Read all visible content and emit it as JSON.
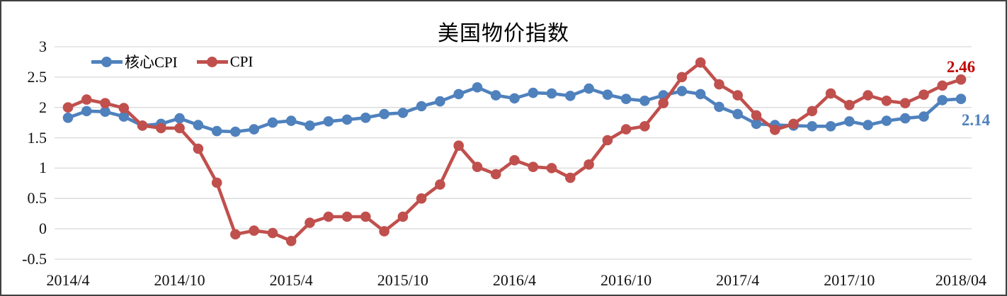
{
  "chart_data": {
    "type": "line",
    "title": "美国物价指数",
    "x_tick_labels": [
      "2014/4",
      "2014/10",
      "2015/4",
      "2015/10",
      "2016/4",
      "2016/10",
      "2017/4",
      "2017/10",
      "2018/04"
    ],
    "y_tick_labels": [
      "3",
      "2.5",
      "2",
      "1.5",
      "1",
      "0.5",
      "0",
      "-0.5"
    ],
    "ylim": [
      -0.5,
      3
    ],
    "grid": "horizontal",
    "grid_color": "#D9D9D9",
    "legend_position": "top-left-inside",
    "x_months": [
      "2014/4",
      "2014/5",
      "2014/6",
      "2014/7",
      "2014/8",
      "2014/9",
      "2014/10",
      "2014/11",
      "2014/12",
      "2015/1",
      "2015/2",
      "2015/3",
      "2015/4",
      "2015/5",
      "2015/6",
      "2015/7",
      "2015/8",
      "2015/9",
      "2015/10",
      "2015/11",
      "2015/12",
      "2016/1",
      "2016/2",
      "2016/3",
      "2016/4",
      "2016/5",
      "2016/6",
      "2016/7",
      "2016/8",
      "2016/9",
      "2016/10",
      "2016/11",
      "2016/12",
      "2017/1",
      "2017/2",
      "2017/3",
      "2017/4",
      "2017/5",
      "2017/6",
      "2017/7",
      "2017/8",
      "2017/9",
      "2017/10",
      "2017/11",
      "2017/12",
      "2018/1",
      "2018/2",
      "2018/3",
      "2018/4"
    ],
    "series": [
      {
        "name": "核心CPI",
        "color": "#4F81BD",
        "values": [
          1.83,
          1.94,
          1.93,
          1.85,
          1.7,
          1.73,
          1.82,
          1.71,
          1.61,
          1.6,
          1.64,
          1.75,
          1.78,
          1.7,
          1.77,
          1.8,
          1.83,
          1.89,
          1.91,
          2.02,
          2.1,
          2.22,
          2.33,
          2.2,
          2.15,
          2.24,
          2.23,
          2.19,
          2.31,
          2.21,
          2.14,
          2.11,
          2.2,
          2.27,
          2.22,
          2.01,
          1.89,
          1.73,
          1.71,
          1.7,
          1.69,
          1.69,
          1.77,
          1.71,
          1.78,
          1.82,
          1.85,
          2.12,
          2.14
        ]
      },
      {
        "name": "CPI",
        "color": "#C0504D",
        "values": [
          2.0,
          2.13,
          2.07,
          1.99,
          1.7,
          1.66,
          1.66,
          1.32,
          0.76,
          -0.09,
          -0.03,
          -0.07,
          -0.2,
          0.1,
          0.2,
          0.2,
          0.2,
          -0.04,
          0.2,
          0.5,
          0.73,
          1.37,
          1.02,
          0.9,
          1.13,
          1.02,
          1.0,
          0.84,
          1.06,
          1.46,
          1.64,
          1.69,
          2.07,
          2.5,
          2.74,
          2.38,
          2.2,
          1.87,
          1.63,
          1.73,
          1.94,
          2.23,
          2.04,
          2.2,
          2.11,
          2.07,
          2.21,
          2.36,
          2.46
        ]
      }
    ],
    "end_labels": [
      {
        "series": "CPI",
        "text": "2.46",
        "color": "#C00000"
      },
      {
        "series": "核心CPI",
        "text": "2.14",
        "color": "#4F81BD"
      }
    ]
  }
}
